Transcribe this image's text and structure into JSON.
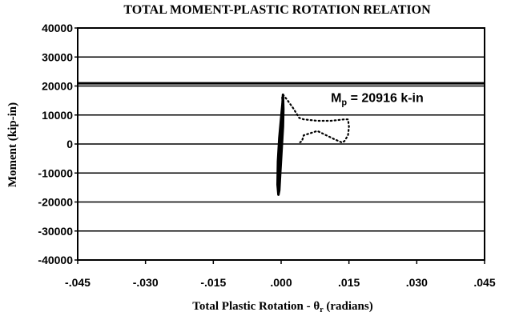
{
  "chart_data": {
    "type": "line",
    "title": "TOTAL MOMENT-PLASTIC ROTATION RELATION",
    "xlabel": "Total Plastic Rotation - θ",
    "xlabel_subscript": "r",
    "xlabel_units": " (radians)",
    "ylabel": "Moment (kip-in)",
    "xlim": [
      -0.045,
      0.045
    ],
    "ylim": [
      -40000,
      40000
    ],
    "x_ticks": [
      -0.045,
      -0.03,
      -0.015,
      0.0,
      0.015,
      0.03,
      0.045
    ],
    "x_tick_labels": [
      "-.045",
      "-.030",
      "-.015",
      ".000",
      ".015",
      ".030",
      ".045"
    ],
    "y_ticks": [
      40000,
      30000,
      20000,
      10000,
      0,
      -10000,
      -20000,
      -30000,
      -40000
    ],
    "y_tick_labels": [
      "40000",
      "30000",
      "20000",
      "10000",
      "0",
      "-10000",
      "-20000",
      "-30000",
      "-40000"
    ],
    "grid": "horizontal",
    "reference_line": {
      "y": 20916
    },
    "annotation": {
      "text_main": "M",
      "text_sub": "p",
      "text_rest": " = 20916 k-in",
      "x": 0.011,
      "y": 14500
    },
    "series": [
      {
        "style": "solid",
        "values": [
          [
            0.0003,
            16000
          ],
          [
            0.0005,
            12000
          ],
          [
            0.0004,
            6000
          ],
          [
            0.0001,
            -2000
          ],
          [
            -0.0002,
            -10000
          ],
          [
            -0.0004,
            -16000
          ],
          [
            -0.0006,
            -17500
          ],
          [
            -0.0008,
            -14000
          ],
          [
            -0.0007,
            -6000
          ],
          [
            -0.0004,
            2000
          ],
          [
            0.0,
            9000
          ],
          [
            0.0003,
            14000
          ],
          [
            0.0004,
            17000
          ],
          [
            0.0005,
            12000
          ],
          [
            0.0002,
            3000
          ],
          [
            -0.0002,
            -8000
          ],
          [
            -0.0005,
            -15000
          ],
          [
            -0.0004,
            -11000
          ],
          [
            -0.0001,
            -2000
          ],
          [
            0.0002,
            8000
          ],
          [
            0.0004,
            15000
          ]
        ]
      },
      {
        "style": "dotted",
        "values": [
          [
            0.0004,
            17000
          ],
          [
            0.0012,
            15500
          ],
          [
            0.0026,
            12500
          ],
          [
            0.004,
            9000
          ],
          [
            0.005,
            8500
          ],
          [
            0.008,
            8000
          ],
          [
            0.011,
            8000
          ],
          [
            0.014,
            8500
          ],
          [
            0.0148,
            8500
          ],
          [
            0.015,
            6000
          ],
          [
            0.0148,
            3000
          ],
          [
            0.014,
            1000
          ],
          [
            0.0135,
            500
          ],
          [
            0.012,
            1500
          ],
          [
            0.008,
            4500
          ],
          [
            0.005,
            3000
          ],
          [
            0.0046,
            1000
          ],
          [
            0.0042,
            600
          ]
        ]
      }
    ]
  }
}
